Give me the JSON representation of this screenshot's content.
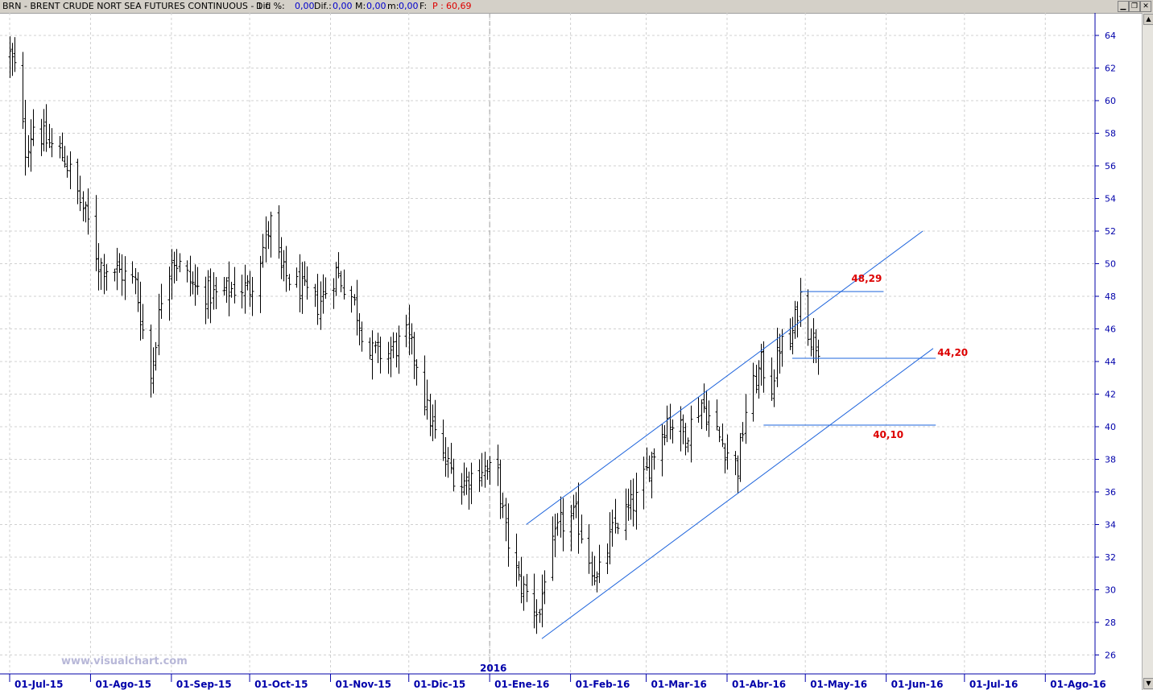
{
  "header": {
    "symbol_title": "BRN - BRENT CRUDE NORT SEA FUTURES CONTINUOUS - 1 d",
    "dif_pct_label": "Dif. %:",
    "dif_pct_value": "0,00",
    "dif_label": "Dif.:",
    "dif_value": "0,00",
    "max_label": "M:",
    "max_value": "0,00",
    "min_label": "m:",
    "min_value": "0,00",
    "f_label": "F:",
    "price_label": "P :",
    "price_value": "60,69"
  },
  "window_buttons": [
    "minimize-icon",
    "restore-icon",
    "close-icon"
  ],
  "watermark": "www.visualchart.com",
  "year_marker": "2016",
  "colors": {
    "price_bars": "#000000",
    "axis_text": "#0000aa",
    "trendlines": "#1e64dc",
    "level_labels": "#dd0000",
    "grid": "#d0d0d0",
    "price_value": "#dd0000"
  },
  "chart_data": {
    "type": "ohlc",
    "title": "BRN - BRENT CRUDE NORT SEA FUTURES CONTINUOUS - 1 d",
    "x_start": "2015-07-01",
    "y_range": [
      25,
      65
    ],
    "yticks": [
      26,
      28,
      30,
      32,
      34,
      36,
      38,
      40,
      42,
      44,
      46,
      48,
      50,
      52,
      54,
      56,
      58,
      60,
      62,
      64
    ],
    "xtick_labels": [
      "01-Jul-15",
      "01-Ago-15",
      "01-Sep-15",
      "01-Oct-15",
      "01-Nov-15",
      "01-Dic-15",
      "01-Ene-16",
      "01-Feb-16",
      "01-Mar-16",
      "01-Abr-16",
      "01-May-16",
      "01-Jun-16",
      "01-Jul-16",
      "01-Ago-16"
    ],
    "grid": true,
    "anchors": [
      [
        "2015-07-01",
        62.8
      ],
      [
        "2015-07-03",
        62.0
      ],
      [
        "2015-07-07",
        57.0
      ],
      [
        "2015-07-10",
        58.5
      ],
      [
        "2015-07-15",
        57.5
      ],
      [
        "2015-07-22",
        56.5
      ],
      [
        "2015-07-31",
        52.5
      ],
      [
        "2015-08-04",
        50.0
      ],
      [
        "2015-08-12",
        49.5
      ],
      [
        "2015-08-18",
        48.8
      ],
      [
        "2015-08-24",
        43.0
      ],
      [
        "2015-08-28",
        48.0
      ],
      [
        "2015-09-01",
        50.5
      ],
      [
        "2015-09-10",
        48.5
      ],
      [
        "2015-09-18",
        48.0
      ],
      [
        "2015-09-25",
        48.5
      ],
      [
        "2015-10-01",
        48.5
      ],
      [
        "2015-10-09",
        52.5
      ],
      [
        "2015-10-13",
        49.5
      ],
      [
        "2015-10-20",
        48.5
      ],
      [
        "2015-10-27",
        47.5
      ],
      [
        "2015-11-03",
        49.5
      ],
      [
        "2015-11-09",
        48.0
      ],
      [
        "2015-11-16",
        44.5
      ],
      [
        "2015-11-23",
        44.5
      ],
      [
        "2015-11-30",
        45.5
      ],
      [
        "2015-12-04",
        44.0
      ],
      [
        "2015-12-08",
        41.0
      ],
      [
        "2015-12-14",
        38.0
      ],
      [
        "2015-12-21",
        36.5
      ],
      [
        "2015-12-29",
        37.5
      ],
      [
        "2016-01-04",
        37.0
      ],
      [
        "2016-01-07",
        33.5
      ],
      [
        "2016-01-12",
        30.5
      ],
      [
        "2016-01-20",
        28.5
      ],
      [
        "2016-01-22",
        31.0
      ],
      [
        "2016-01-28",
        34.0
      ],
      [
        "2016-02-03",
        34.5
      ],
      [
        "2016-02-11",
        30.5
      ],
      [
        "2016-02-18",
        34.0
      ],
      [
        "2016-02-26",
        35.5
      ],
      [
        "2016-03-04",
        38.5
      ],
      [
        "2016-03-09",
        40.5
      ],
      [
        "2016-03-16",
        39.5
      ],
      [
        "2016-03-22",
        41.5
      ],
      [
        "2016-03-30",
        39.0
      ],
      [
        "2016-04-05",
        37.5
      ],
      [
        "2016-04-08",
        41.0
      ],
      [
        "2016-04-14",
        43.8
      ],
      [
        "2016-04-18",
        42.5
      ],
      [
        "2016-04-21",
        45.0
      ],
      [
        "2016-04-25",
        45.0
      ],
      [
        "2016-04-29",
        48.0
      ],
      [
        "2016-05-03",
        45.5
      ],
      [
        "2016-05-06",
        45.0
      ]
    ],
    "channel_lines": [
      {
        "from": [
          "2016-01-21",
          27.0
        ],
        "to": [
          "2016-06-19",
          44.8
        ]
      },
      {
        "from": [
          "2016-01-15",
          34.0
        ],
        "to": [
          "2016-06-15",
          52.0
        ]
      }
    ],
    "levels": [
      {
        "value": 48.29,
        "label": "48,29",
        "from": "2016-04-29",
        "to": "2016-05-31"
      },
      {
        "value": 44.2,
        "label": "44,20",
        "from": "2016-04-26",
        "to": "2016-06-20"
      },
      {
        "value": 40.1,
        "label": "40,10",
        "from": "2016-04-15",
        "to": "2016-06-20"
      }
    ]
  }
}
